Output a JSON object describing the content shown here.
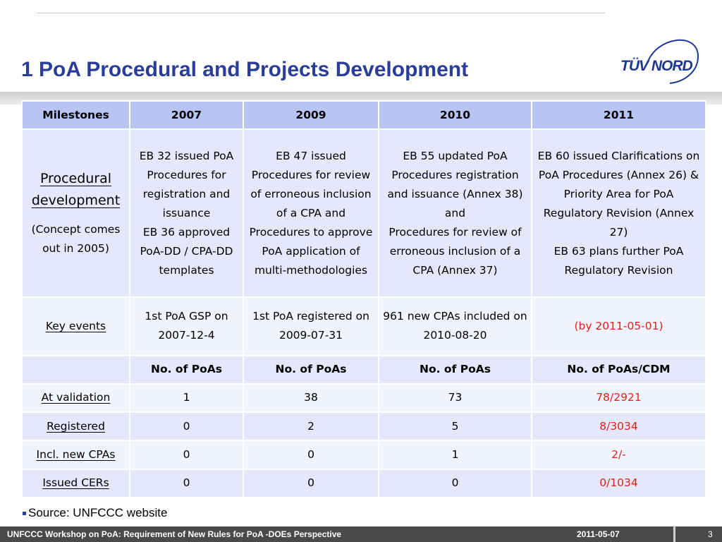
{
  "slide": {
    "title": "1 PoA Procedural and Projects Development",
    "logo_text": "TÜV NORD"
  },
  "table": {
    "headers": [
      "Milestones",
      "2007",
      "2009",
      "2010",
      "2011"
    ],
    "procedural": {
      "label": "Procedural development",
      "note": "(Concept comes out in 2005)",
      "y2007": "EB 32 issued PoA Procedures for registration  and issuance\nEB 36 approved PoA-DD / CPA-DD templates",
      "y2009": "EB 47 issued Procedures for review of erroneous inclusion of a CPA and Procedures to approve PoA application of multi-methodologies",
      "y2010": "EB 55 updated PoA Procedures registration and issuance (Annex 38) and\nProcedures for review of erroneous inclusion of a CPA (Annex 37)",
      "y2011": "EB 60 issued Clarifications on PoA Procedures (Annex 26) & Priority Area for PoA Regulatory Revision (Annex 27)\nEB 63 plans further PoA Regulatory Revision"
    },
    "key_events": {
      "label": "Key events",
      "y2007": "1st PoA GSP on 2007-12-4",
      "y2009": "1st PoA registered on 2009-07-31",
      "y2010": "961 new CPAs included on 2010-08-20",
      "y2011": "(by 2011-05-01)"
    },
    "counts_header": [
      "",
      "No. of PoAs",
      "No. of PoAs",
      "No. of PoAs",
      "No. of PoAs/CDM"
    ],
    "counts": [
      {
        "label": "At validation",
        "y2007": "1",
        "y2009": "38",
        "y2010": "73",
        "y2011": "78/2921"
      },
      {
        "label": "Registered",
        "y2007": "0",
        "y2009": "2",
        "y2010": "5",
        "y2011": "8/3034"
      },
      {
        "label": "Incl. new CPAs",
        "y2007": "0",
        "y2009": "0",
        "y2010": "1",
        "y2011": "2/-"
      },
      {
        "label": "Issued CERs",
        "y2007": "0",
        "y2009": "0",
        "y2010": "0",
        "y2011": "0/1034"
      }
    ]
  },
  "source": "Source: UNFCCC website",
  "footer": {
    "left": "UNFCCC Workshop on PoA: Requirement of New Rules for PoA -DOEs Perspective",
    "date": "2011-05-07",
    "page": "3"
  },
  "colors": {
    "title": "#2b3d9a",
    "header_fill": "#b8c4f2",
    "row_fill_dark": "#e4e8fa",
    "row_fill_light": "#f1f3fd",
    "highlight_red": "#e0201b",
    "footer_bg": "#4a4a4a"
  }
}
